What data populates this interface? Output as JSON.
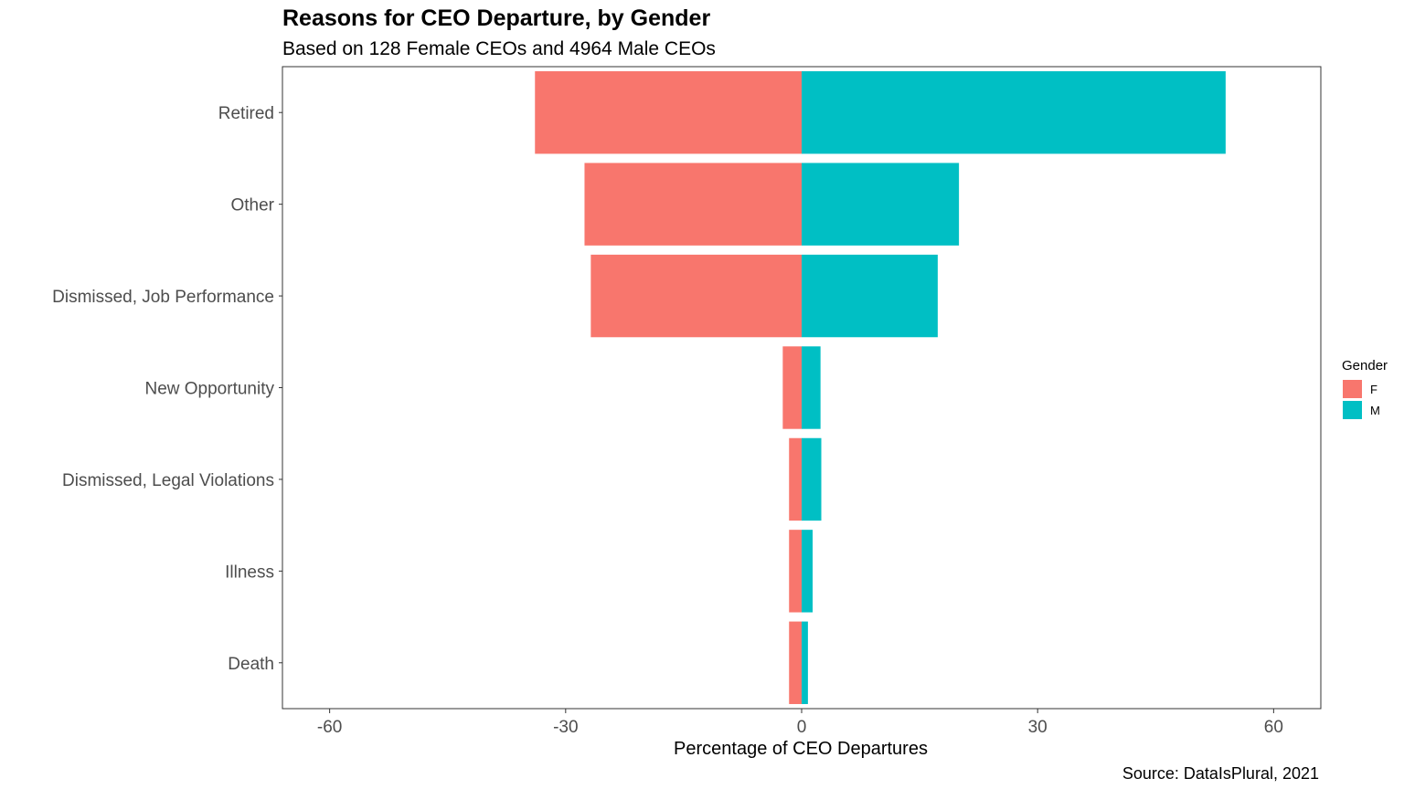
{
  "chart_data": {
    "type": "bar",
    "orientation": "horizontal",
    "title": "Reasons for CEO Departure, by Gender",
    "subtitle": "Based on 128 Female CEOs and 4964 Male CEOs",
    "xlabel": "Percentage of CEO Departures",
    "ylabel": "",
    "caption": "Source: DataIsPlural, 2021",
    "xlim": [
      -66,
      66
    ],
    "xticks": [
      -60,
      -30,
      0,
      30,
      60
    ],
    "xtick_labels": [
      "-60",
      "-30",
      "0",
      "30",
      "60"
    ],
    "categories": [
      "Retired",
      "Other",
      "Dismissed, Job Performance",
      "New Opportunity",
      "Dismissed, Legal Violations",
      "Illness",
      "Death"
    ],
    "series": [
      {
        "name": "F",
        "color": "#F8766D",
        "values": [
          -33.9,
          -27.6,
          -26.8,
          -2.4,
          -1.6,
          -1.6,
          -1.6
        ]
      },
      {
        "name": "M",
        "color": "#00BFC4",
        "values": [
          53.9,
          20.0,
          17.3,
          2.4,
          2.5,
          1.4,
          0.8
        ]
      }
    ],
    "legend": {
      "title": "Gender",
      "position": "right"
    },
    "grid": false
  }
}
